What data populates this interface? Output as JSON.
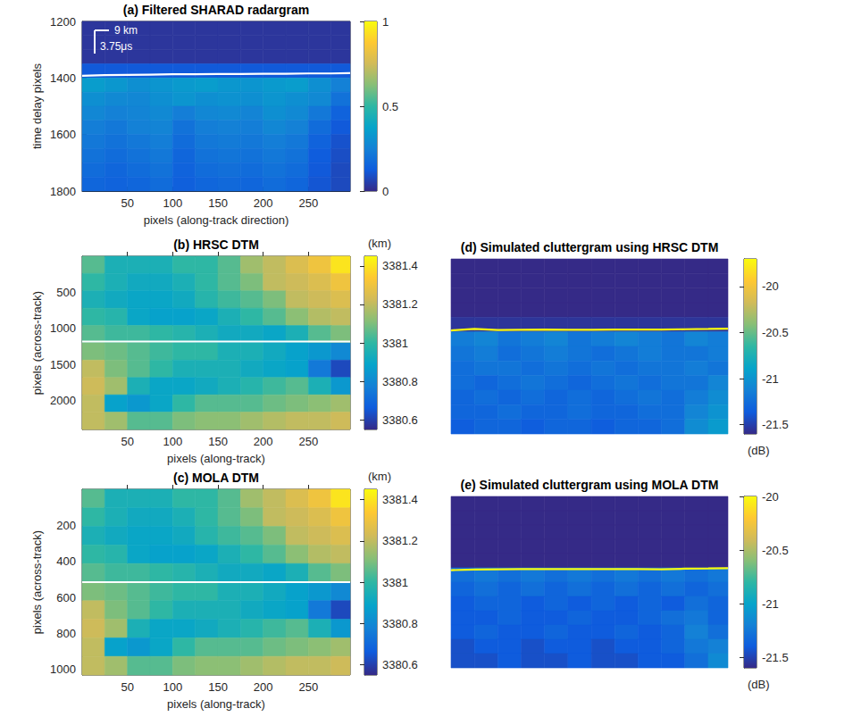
{
  "chart_data": [
    {
      "type": "heatmap",
      "title": "(a) Filtered SHARAD radargram",
      "x_label": "pixels (along-track direction)",
      "y_label": "time delay pixels",
      "xlim": [
        0,
        296
      ],
      "xticks": [
        50,
        100,
        150,
        200,
        250
      ],
      "ylim": [
        1200,
        1800
      ],
      "yticks": [
        1200,
        1400,
        1600,
        1800
      ],
      "x": [
        12.5,
        37.5,
        62.5,
        87.5,
        112.5,
        137.5,
        162.5,
        187.5,
        212.5,
        237.5,
        262.5,
        287.5
      ],
      "y": [
        1225,
        1275,
        1325,
        1375,
        1425,
        1475,
        1525,
        1575,
        1625,
        1675,
        1725,
        1775
      ],
      "cells": [
        [
          0.03,
          0.03,
          0.03,
          0.03,
          0.03,
          0.03,
          0.03,
          0.03,
          0.03,
          0.03,
          0.03,
          0.03
        ],
        [
          0.03,
          0.03,
          0.03,
          0.03,
          0.03,
          0.03,
          0.03,
          0.03,
          0.03,
          0.03,
          0.03,
          0.03
        ],
        [
          0.03,
          0.03,
          0.03,
          0.03,
          0.03,
          0.03,
          0.03,
          0.03,
          0.03,
          0.03,
          0.03,
          0.03
        ],
        [
          0.12,
          0.12,
          0.12,
          0.12,
          0.12,
          0.12,
          0.12,
          0.12,
          0.12,
          0.12,
          0.12,
          0.12
        ],
        [
          0.35,
          0.33,
          0.3,
          0.32,
          0.34,
          0.35,
          0.33,
          0.32,
          0.34,
          0.35,
          0.3,
          0.25
        ],
        [
          0.3,
          0.28,
          0.27,
          0.3,
          0.32,
          0.3,
          0.31,
          0.3,
          0.32,
          0.3,
          0.28,
          0.2
        ],
        [
          0.27,
          0.25,
          0.26,
          0.28,
          0.24,
          0.27,
          0.28,
          0.26,
          0.3,
          0.28,
          0.22,
          0.15
        ],
        [
          0.24,
          0.22,
          0.25,
          0.26,
          0.2,
          0.24,
          0.25,
          0.24,
          0.27,
          0.25,
          0.18,
          0.12
        ],
        [
          0.22,
          0.2,
          0.22,
          0.24,
          0.18,
          0.22,
          0.23,
          0.22,
          0.24,
          0.22,
          0.15,
          0.1
        ],
        [
          0.2,
          0.18,
          0.2,
          0.22,
          0.16,
          0.2,
          0.21,
          0.2,
          0.22,
          0.2,
          0.13,
          0.09
        ],
        [
          0.18,
          0.16,
          0.18,
          0.2,
          0.15,
          0.18,
          0.19,
          0.18,
          0.2,
          0.18,
          0.12,
          0.08
        ],
        [
          0.16,
          0.15,
          0.16,
          0.18,
          0.14,
          0.16,
          0.17,
          0.16,
          0.18,
          0.16,
          0.11,
          0.08
        ]
      ],
      "surface": {
        "x": [
          0,
          25,
          50,
          75,
          100,
          125,
          150,
          175,
          200,
          225,
          250,
          275,
          296
        ],
        "y": [
          1392,
          1390,
          1389,
          1388,
          1387,
          1387,
          1386,
          1386,
          1385,
          1385,
          1384,
          1384,
          1383
        ]
      },
      "annotations": [
        "9 km",
        "3.75μs"
      ],
      "colorbar": {
        "range": [
          0,
          1
        ],
        "ticks": [
          0,
          0.5,
          1
        ]
      }
    },
    {
      "type": "heatmap",
      "title": "(b) HRSC DTM",
      "x_label": "pixels (along-track)",
      "y_label": "pixels (across-track)",
      "xlim": [
        0,
        296
      ],
      "xticks": [
        50,
        100,
        150,
        200,
        250
      ],
      "ylim": [
        0,
        2400
      ],
      "yticks": [
        500,
        1000,
        1500,
        2000
      ],
      "x": [
        12.5,
        37.5,
        62.5,
        87.5,
        112.5,
        137.5,
        162.5,
        187.5,
        212.5,
        237.5,
        262.5,
        287.5
      ],
      "y": [
        120,
        360,
        600,
        840,
        1080,
        1320,
        1560,
        1800,
        2040,
        2280
      ],
      "cells": [
        [
          3381.05,
          3380.95,
          3380.95,
          3380.95,
          3381.0,
          3381.0,
          3381.05,
          3381.15,
          3381.2,
          3381.25,
          3381.3,
          3381.4
        ],
        [
          3381.0,
          3380.95,
          3380.92,
          3380.92,
          3380.95,
          3381.0,
          3381.05,
          3381.1,
          3381.2,
          3381.22,
          3381.25,
          3381.3
        ],
        [
          3380.95,
          3380.92,
          3380.9,
          3380.9,
          3380.92,
          3380.98,
          3381.02,
          3381.05,
          3381.1,
          3381.2,
          3381.22,
          3381.25
        ],
        [
          3381.0,
          3380.98,
          3380.9,
          3380.88,
          3380.88,
          3380.9,
          3380.95,
          3381.0,
          3381.05,
          3381.12,
          3381.18,
          3381.2
        ],
        [
          3381.05,
          3381.02,
          3381.02,
          3381.0,
          3380.98,
          3380.95,
          3380.92,
          3380.92,
          3380.9,
          3380.95,
          3381.05,
          3381.1
        ],
        [
          3381.1,
          3381.08,
          3381.05,
          3381.02,
          3381.0,
          3381.0,
          3380.95,
          3380.95,
          3380.92,
          3380.88,
          3380.85,
          3380.8
        ],
        [
          3381.2,
          3381.1,
          3381.05,
          3381.0,
          3380.95,
          3380.95,
          3380.95,
          3380.92,
          3380.9,
          3380.88,
          3380.75,
          3380.62
        ],
        [
          3381.22,
          3381.15,
          3380.95,
          3380.9,
          3380.9,
          3380.92,
          3380.95,
          3380.98,
          3381.02,
          3381.05,
          3380.95,
          3380.85
        ],
        [
          3381.2,
          3380.88,
          3380.85,
          3380.9,
          3381.0,
          3381.05,
          3381.05,
          3381.05,
          3381.08,
          3381.1,
          3381.12,
          3381.15
        ],
        [
          3381.2,
          3381.15,
          3381.05,
          3381.05,
          3381.1,
          3381.12,
          3381.12,
          3381.15,
          3381.18,
          3381.2,
          3381.2,
          3381.22
        ]
      ],
      "track_y": 1180,
      "colorbar": {
        "range": [
          3380.55,
          3381.45
        ],
        "ticks": [
          3380.6,
          3380.8,
          3381,
          3381.2,
          3381.4
        ],
        "unit": "(km)"
      }
    },
    {
      "type": "heatmap",
      "title": "(c) MOLA DTM",
      "x_label": "pixels (along-track)",
      "y_label": "pixels (across-track)",
      "xlim": [
        0,
        296
      ],
      "xticks": [
        50,
        100,
        150,
        200,
        250
      ],
      "ylim": [
        0,
        1030
      ],
      "yticks": [
        200,
        400,
        600,
        800,
        1000
      ],
      "x": [
        12.5,
        37.5,
        62.5,
        87.5,
        112.5,
        137.5,
        162.5,
        187.5,
        212.5,
        237.5,
        262.5,
        287.5
      ],
      "y": [
        51.5,
        154.5,
        257.5,
        360.5,
        463.5,
        566.5,
        669.5,
        772.5,
        875.5,
        978.5
      ],
      "cells": [
        [
          3381.05,
          3380.95,
          3380.95,
          3380.95,
          3381.0,
          3381.0,
          3381.05,
          3381.15,
          3381.2,
          3381.25,
          3381.3,
          3381.4
        ],
        [
          3381.0,
          3380.95,
          3380.92,
          3380.92,
          3380.95,
          3381.0,
          3381.05,
          3381.1,
          3381.2,
          3381.22,
          3381.25,
          3381.3
        ],
        [
          3380.95,
          3380.92,
          3380.9,
          3380.9,
          3380.92,
          3380.98,
          3381.02,
          3381.05,
          3381.1,
          3381.2,
          3381.22,
          3381.25
        ],
        [
          3381.0,
          3380.98,
          3380.9,
          3380.88,
          3380.88,
          3380.9,
          3380.95,
          3381.0,
          3381.05,
          3381.12,
          3381.18,
          3381.2
        ],
        [
          3381.05,
          3381.02,
          3381.02,
          3381.0,
          3380.98,
          3380.95,
          3380.92,
          3380.92,
          3380.9,
          3380.95,
          3381.05,
          3381.1
        ],
        [
          3381.1,
          3381.08,
          3381.05,
          3381.02,
          3381.0,
          3381.0,
          3380.95,
          3380.95,
          3380.92,
          3380.88,
          3380.85,
          3380.8
        ],
        [
          3381.2,
          3381.1,
          3381.05,
          3381.0,
          3380.95,
          3380.95,
          3380.95,
          3380.92,
          3380.9,
          3380.88,
          3380.75,
          3380.62
        ],
        [
          3381.22,
          3381.15,
          3380.95,
          3380.9,
          3380.9,
          3380.92,
          3380.95,
          3380.98,
          3381.02,
          3381.05,
          3380.95,
          3380.85
        ],
        [
          3381.2,
          3380.88,
          3380.85,
          3380.9,
          3381.0,
          3381.05,
          3381.05,
          3381.05,
          3381.08,
          3381.1,
          3381.12,
          3381.15
        ],
        [
          3381.2,
          3381.15,
          3381.05,
          3381.05,
          3381.1,
          3381.12,
          3381.12,
          3381.15,
          3381.18,
          3381.2,
          3381.2,
          3381.22
        ]
      ],
      "track_y": 515,
      "colorbar": {
        "range": [
          3380.55,
          3381.45
        ],
        "ticks": [
          3380.6,
          3380.8,
          3381,
          3381.2,
          3381.4
        ],
        "unit": "(km)"
      }
    },
    {
      "type": "heatmap",
      "title": "(d) Simulated cluttergram using HRSC DTM",
      "tick_labels": false,
      "xlim": [
        0,
        296
      ],
      "ylim": [
        0,
        600
      ],
      "x": [
        12.5,
        37.5,
        62.5,
        87.5,
        112.5,
        137.5,
        162.5,
        187.5,
        212.5,
        237.5,
        262.5,
        287.5
      ],
      "y": [
        25,
        75,
        125,
        175,
        225,
        275,
        325,
        375,
        425,
        475,
        525,
        575
      ],
      "cells": [
        [
          -21.6,
          -21.6,
          -21.6,
          -21.6,
          -21.6,
          -21.6,
          -21.6,
          -21.6,
          -21.6,
          -21.6,
          -21.6,
          -21.6
        ],
        [
          -21.6,
          -21.6,
          -21.6,
          -21.6,
          -21.6,
          -21.6,
          -21.6,
          -21.6,
          -21.6,
          -21.6,
          -21.6,
          -21.6
        ],
        [
          -21.6,
          -21.6,
          -21.6,
          -21.6,
          -21.6,
          -21.6,
          -21.6,
          -21.6,
          -21.6,
          -21.6,
          -21.6,
          -21.6
        ],
        [
          -21.6,
          -21.6,
          -21.6,
          -21.6,
          -21.6,
          -21.6,
          -21.6,
          -21.6,
          -21.6,
          -21.6,
          -21.6,
          -21.6
        ],
        [
          -21.55,
          -21.55,
          -21.55,
          -21.55,
          -21.55,
          -21.55,
          -21.55,
          -21.55,
          -21.55,
          -21.55,
          -21.55,
          -21.55
        ],
        [
          -21.15,
          -21.1,
          -21.2,
          -21.15,
          -21.1,
          -21.2,
          -21.15,
          -21.1,
          -21.15,
          -21.2,
          -21.1,
          -21.15
        ],
        [
          -21.2,
          -21.15,
          -21.25,
          -21.2,
          -21.15,
          -21.2,
          -21.25,
          -21.2,
          -21.15,
          -21.2,
          -21.2,
          -21.15
        ],
        [
          -21.25,
          -21.2,
          -21.2,
          -21.25,
          -21.2,
          -21.25,
          -21.2,
          -21.25,
          -21.2,
          -21.2,
          -21.15,
          -21.2
        ],
        [
          -21.25,
          -21.3,
          -21.25,
          -21.2,
          -21.25,
          -21.3,
          -21.25,
          -21.2,
          -21.25,
          -21.2,
          -21.2,
          -21.1
        ],
        [
          -21.3,
          -21.25,
          -21.3,
          -21.25,
          -21.3,
          -21.25,
          -21.3,
          -21.25,
          -21.2,
          -21.25,
          -21.15,
          -21.05
        ],
        [
          -21.3,
          -21.3,
          -21.25,
          -21.3,
          -21.3,
          -21.25,
          -21.3,
          -21.3,
          -21.25,
          -21.25,
          -21.1,
          -21.0
        ],
        [
          -21.35,
          -21.3,
          -21.3,
          -21.35,
          -21.3,
          -21.3,
          -21.35,
          -21.3,
          -21.3,
          -21.25,
          -21.05,
          -20.95
        ]
      ],
      "surface": {
        "x": [
          0,
          25,
          50,
          75,
          100,
          125,
          150,
          175,
          200,
          225,
          250,
          275,
          296
        ],
        "y": [
          245,
          240,
          244,
          243,
          242,
          243,
          243,
          242,
          242,
          242,
          241,
          240,
          239
        ]
      },
      "colorbar": {
        "range": [
          -21.6,
          -19.7
        ],
        "ticks": [
          -21.5,
          -21,
          -20.5,
          -20
        ],
        "unit": "(dB)"
      }
    },
    {
      "type": "heatmap",
      "title": "(e) Simulated cluttergram using MOLA DTM",
      "tick_labels": false,
      "xlim": [
        0,
        296
      ],
      "ylim": [
        0,
        600
      ],
      "x": [
        12.5,
        37.5,
        62.5,
        87.5,
        112.5,
        137.5,
        162.5,
        187.5,
        212.5,
        237.5,
        262.5,
        287.5
      ],
      "y": [
        25,
        75,
        125,
        175,
        225,
        275,
        325,
        375,
        425,
        475,
        525,
        575
      ],
      "cells": [
        [
          -21.6,
          -21.6,
          -21.6,
          -21.6,
          -21.6,
          -21.6,
          -21.6,
          -21.6,
          -21.6,
          -21.6,
          -21.6,
          -21.6
        ],
        [
          -21.6,
          -21.6,
          -21.6,
          -21.6,
          -21.6,
          -21.6,
          -21.6,
          -21.6,
          -21.6,
          -21.6,
          -21.6,
          -21.6
        ],
        [
          -21.6,
          -21.6,
          -21.6,
          -21.6,
          -21.6,
          -21.6,
          -21.6,
          -21.6,
          -21.6,
          -21.6,
          -21.6,
          -21.6
        ],
        [
          -21.6,
          -21.6,
          -21.6,
          -21.6,
          -21.6,
          -21.6,
          -21.6,
          -21.6,
          -21.6,
          -21.6,
          -21.6,
          -21.6
        ],
        [
          -21.6,
          -21.6,
          -21.6,
          -21.6,
          -21.6,
          -21.6,
          -21.6,
          -21.6,
          -21.6,
          -21.6,
          -21.6,
          -21.6
        ],
        [
          -21.3,
          -21.25,
          -21.3,
          -21.25,
          -21.3,
          -21.25,
          -21.3,
          -21.25,
          -21.3,
          -21.25,
          -21.3,
          -21.25
        ],
        [
          -21.35,
          -21.3,
          -21.35,
          -21.3,
          -21.35,
          -21.3,
          -21.35,
          -21.3,
          -21.35,
          -21.3,
          -21.35,
          -21.3
        ],
        [
          -21.4,
          -21.35,
          -21.35,
          -21.4,
          -21.35,
          -21.4,
          -21.35,
          -21.4,
          -21.35,
          -21.4,
          -21.3,
          -21.35
        ],
        [
          -21.4,
          -21.4,
          -21.35,
          -21.4,
          -21.4,
          -21.35,
          -21.4,
          -21.4,
          -21.35,
          -21.3,
          -21.25,
          -21.35
        ],
        [
          -21.4,
          -21.35,
          -21.4,
          -21.4,
          -21.35,
          -21.4,
          -21.4,
          -21.35,
          -21.4,
          -21.35,
          -21.2,
          -21.3
        ],
        [
          -21.45,
          -21.4,
          -21.4,
          -21.45,
          -21.4,
          -21.4,
          -21.45,
          -21.4,
          -21.4,
          -21.35,
          -21.25,
          -21.2
        ],
        [
          -21.45,
          -21.45,
          -21.4,
          -21.45,
          -21.45,
          -21.4,
          -21.45,
          -21.45,
          -21.4,
          -21.4,
          -21.3,
          -21.15
        ]
      ],
      "surface": {
        "x": [
          0,
          25,
          50,
          75,
          100,
          125,
          150,
          175,
          200,
          225,
          250,
          275,
          296
        ],
        "y": [
          258,
          256,
          255,
          254,
          254,
          254,
          254,
          254,
          254,
          255,
          253,
          252,
          251
        ]
      },
      "colorbar": {
        "range": [
          -21.6,
          -20.0
        ],
        "ticks": [
          -21.5,
          -21,
          -20.5,
          -20
        ],
        "unit": "(dB)"
      }
    }
  ]
}
